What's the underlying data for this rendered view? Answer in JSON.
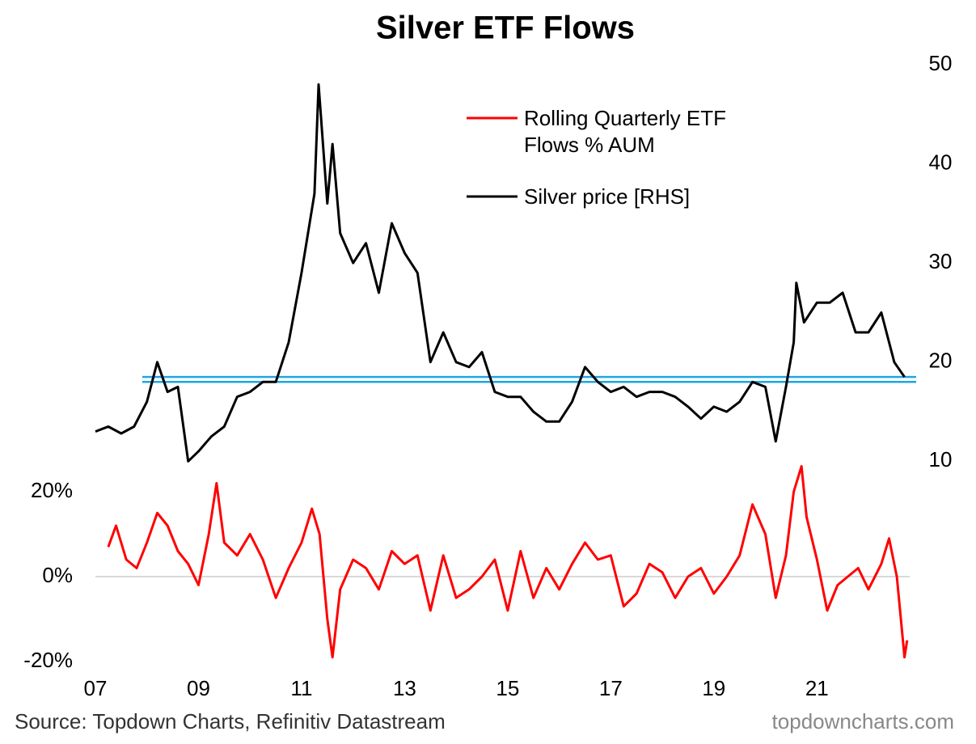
{
  "chart_data": {
    "type": "line",
    "title": "Silver ETF Flows",
    "source": "Source: Topdown Charts, Refinitiv Datastream",
    "watermark": "topdowncharts.com",
    "xlim": [
      2007,
      2022.8
    ],
    "xticks": [
      {
        "value": 2007,
        "label": "07"
      },
      {
        "value": 2009,
        "label": "09"
      },
      {
        "value": 2011,
        "label": "11"
      },
      {
        "value": 2013,
        "label": "13"
      },
      {
        "value": 2015,
        "label": "15"
      },
      {
        "value": 2017,
        "label": "17"
      },
      {
        "value": 2019,
        "label": "19"
      },
      {
        "value": 2021,
        "label": "21"
      }
    ],
    "ylim": [
      -20,
      120.6
    ],
    "yticks": [
      {
        "value": -20,
        "label": "-20%"
      },
      {
        "value": 0,
        "label": "0%"
      },
      {
        "value": 20,
        "label": "20%"
      }
    ],
    "y2lim": [
      -10.2,
      50
    ],
    "y2ticks": [
      10,
      20,
      30,
      40,
      50
    ],
    "zero_line": true,
    "reference_lines": [
      {
        "axis": "y2",
        "value": 18.5,
        "color": "#1ea7e0"
      },
      {
        "axis": "y2",
        "value": 18,
        "color": "#1ea7e0"
      }
    ],
    "series": [
      {
        "name": "Rolling Quarterly ETF Flows % AUM",
        "color": "#ff0000",
        "axis": "y",
        "x": [
          2007.25,
          2007.4,
          2007.6,
          2007.8,
          2008.0,
          2008.2,
          2008.4,
          2008.6,
          2008.8,
          2009.0,
          2009.2,
          2009.35,
          2009.5,
          2009.75,
          2010.0,
          2010.25,
          2010.5,
          2010.75,
          2011.0,
          2011.2,
          2011.35,
          2011.5,
          2011.6,
          2011.75,
          2012.0,
          2012.25,
          2012.5,
          2012.75,
          2013.0,
          2013.25,
          2013.5,
          2013.75,
          2014.0,
          2014.25,
          2014.5,
          2014.75,
          2015.0,
          2015.25,
          2015.5,
          2015.75,
          2016.0,
          2016.25,
          2016.5,
          2016.75,
          2017.0,
          2017.25,
          2017.5,
          2017.75,
          2018.0,
          2018.25,
          2018.5,
          2018.75,
          2019.0,
          2019.25,
          2019.5,
          2019.75,
          2020.0,
          2020.2,
          2020.4,
          2020.55,
          2020.7,
          2020.8,
          2021.0,
          2021.2,
          2021.4,
          2021.6,
          2021.8,
          2022.0,
          2022.25,
          2022.4,
          2022.55,
          2022.7,
          2022.75
        ],
        "values": [
          7,
          12,
          4,
          2,
          8,
          15,
          12,
          6,
          3,
          -2,
          10,
          22,
          8,
          5,
          10,
          4,
          -5,
          2,
          8,
          16,
          10,
          -10,
          -19,
          -3,
          4,
          2,
          -3,
          6,
          3,
          5,
          -8,
          5,
          -5,
          -3,
          0,
          4,
          -8,
          6,
          -5,
          2,
          -3,
          3,
          8,
          4,
          5,
          -7,
          -4,
          3,
          1,
          -5,
          0,
          2,
          -4,
          0,
          5,
          17,
          10,
          -5,
          5,
          20,
          26,
          14,
          4,
          -8,
          -2,
          0,
          2,
          -3,
          3,
          9,
          0,
          -19,
          -15
        ]
      },
      {
        "name": "Silver price [RHS]",
        "color": "#000000",
        "axis": "y2",
        "x": [
          2007.0,
          2007.25,
          2007.5,
          2007.75,
          2008.0,
          2008.2,
          2008.4,
          2008.6,
          2008.8,
          2009.0,
          2009.25,
          2009.5,
          2009.75,
          2010.0,
          2010.25,
          2010.5,
          2010.75,
          2011.0,
          2011.25,
          2011.33,
          2011.5,
          2011.6,
          2011.75,
          2012.0,
          2012.25,
          2012.5,
          2012.75,
          2013.0,
          2013.25,
          2013.5,
          2013.75,
          2014.0,
          2014.25,
          2014.5,
          2014.75,
          2015.0,
          2015.25,
          2015.5,
          2015.75,
          2016.0,
          2016.25,
          2016.5,
          2016.75,
          2017.0,
          2017.25,
          2017.5,
          2017.75,
          2018.0,
          2018.25,
          2018.5,
          2018.75,
          2019.0,
          2019.25,
          2019.5,
          2019.75,
          2020.0,
          2020.2,
          2020.4,
          2020.55,
          2020.6,
          2020.75,
          2021.0,
          2021.25,
          2021.5,
          2021.75,
          2022.0,
          2022.25,
          2022.5,
          2022.7
        ],
        "values": [
          13,
          13.5,
          12.8,
          13.5,
          16,
          20,
          17,
          17.5,
          10,
          11,
          12.5,
          13.5,
          16.5,
          17,
          18,
          18,
          22,
          29,
          37,
          48,
          36,
          42,
          33,
          30,
          32,
          27,
          34,
          31,
          29,
          20,
          23,
          20,
          19.5,
          21,
          17,
          16.5,
          16.5,
          15,
          14,
          14,
          16,
          19.5,
          18,
          17,
          17.5,
          16.5,
          17,
          17,
          16.5,
          15.5,
          14.3,
          15.5,
          15,
          16,
          18,
          17.5,
          12,
          17.5,
          22,
          28,
          24,
          26,
          26,
          27,
          23,
          23,
          25,
          20,
          18.5
        ]
      }
    ]
  }
}
